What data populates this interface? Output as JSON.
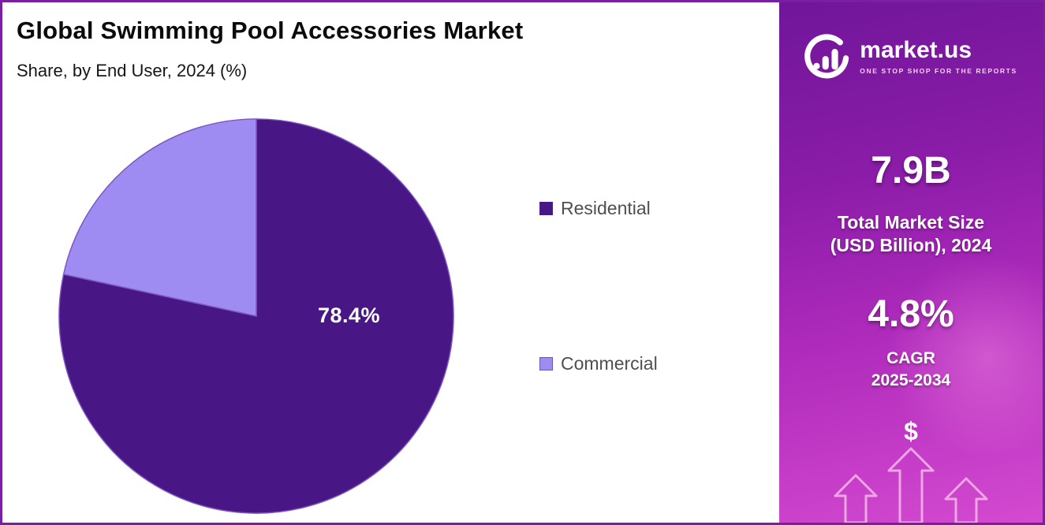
{
  "header": {
    "title": "Global Swimming Pool Accessories Market",
    "subtitle": "Share, by End User, 2024 (%)"
  },
  "chart_data": {
    "type": "pie",
    "title": "Global Swimming Pool Accessories Market",
    "subtitle": "Share, by End User, 2024 (%)",
    "categories": [
      "Residential",
      "Commercial"
    ],
    "values": [
      78.4,
      21.6
    ],
    "colors": [
      "#481685",
      "#9e8cf2"
    ],
    "stroke": "#7e57c2",
    "data_label": "78.4%",
    "legend_position": "right"
  },
  "legend": {
    "items": [
      {
        "label": "Residential",
        "color": "#481685"
      },
      {
        "label": "Commercial",
        "color": "#9e8cf2"
      }
    ]
  },
  "sidebar": {
    "logo": {
      "name": "market.us",
      "tagline": "ONE STOP SHOP FOR THE REPORTS"
    },
    "market_size": {
      "value": "7.9B",
      "label_line1": "Total Market Size",
      "label_line2": "(USD Billion), 2024"
    },
    "cagr": {
      "value": "4.8%",
      "label_line1": "CAGR",
      "label_line2": "2025-2034"
    },
    "dollar": "$"
  },
  "colors": {
    "border_accent": "#7b1fa2",
    "panel_gradient_start": "#70169a",
    "panel_gradient_end": "#d44ad0"
  }
}
